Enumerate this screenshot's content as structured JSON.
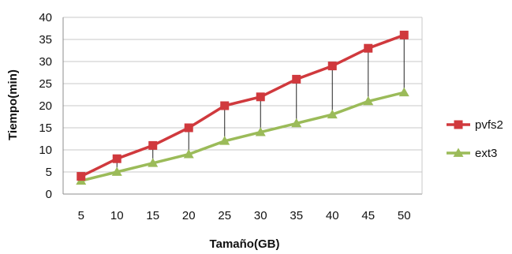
{
  "chart_data": {
    "type": "line",
    "title": "",
    "xlabel": "Tamaño(GB)",
    "ylabel": "Tiempo(min)",
    "categories": [
      "5",
      "10",
      "15",
      "20",
      "25",
      "30",
      "35",
      "40",
      "45",
      "50"
    ],
    "ylim": [
      0,
      40
    ],
    "yticks": [
      0,
      5,
      10,
      15,
      20,
      25,
      30,
      35,
      40
    ],
    "grid": true,
    "legend_position": "right",
    "drop_lines": true,
    "series": [
      {
        "name": "pvfs2",
        "values": [
          4,
          8,
          11,
          15,
          20,
          22,
          26,
          29,
          33,
          36
        ],
        "color": "#d0393d",
        "marker": "square"
      },
      {
        "name": "ext3",
        "values": [
          3,
          5,
          7,
          9,
          12,
          14,
          16,
          18,
          21,
          23
        ],
        "color": "#9bbb59",
        "marker": "triangle"
      }
    ]
  }
}
